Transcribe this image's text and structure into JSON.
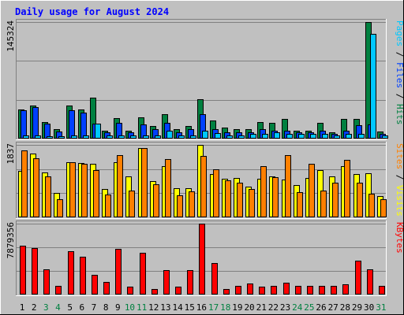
{
  "chart_data": {
    "type": "bar",
    "title": "Daily usage for August 2024",
    "categories": [
      "1",
      "2",
      "3",
      "4",
      "5",
      "6",
      "7",
      "8",
      "9",
      "10",
      "11",
      "12",
      "13",
      "14",
      "15",
      "16",
      "17",
      "18",
      "19",
      "20",
      "21",
      "22",
      "23",
      "24",
      "25",
      "26",
      "27",
      "28",
      "29",
      "30",
      "31"
    ],
    "weekend_days": [
      "3",
      "4",
      "10",
      "11",
      "17",
      "18",
      "24",
      "25",
      "31"
    ],
    "colors": {
      "hits": "#008040",
      "files": "#0040ff",
      "pages": "#00c8ff",
      "visits": "#ffff00",
      "sites": "#ff8000",
      "kbytes": "#ff0000",
      "weekday_label": "#000000",
      "weekend_label": "#008040"
    },
    "panels": [
      {
        "id": "hits-files-pages",
        "max_label": "145324",
        "ymax": 145324,
        "legend": [
          {
            "text": "Pages",
            "color": "#00c8ff"
          },
          {
            "text": "Files",
            "color": "#0040ff"
          },
          {
            "text": "Hits",
            "color": "#008040"
          }
        ],
        "series": [
          {
            "name": "Hits",
            "color": "#008040",
            "values": [
              36000,
              41000,
              21000,
              12000,
              41000,
              36000,
              51000,
              10000,
              26000,
              10000,
              27000,
              16000,
              30000,
              12000,
              16000,
              49000,
              23000,
              14000,
              12000,
              12000,
              21000,
              20000,
              25000,
              10000,
              10000,
              20000,
              8000,
              25000,
              25000,
              145324,
              9000
            ]
          },
          {
            "name": "Files",
            "color": "#0040ff",
            "values": [
              35000,
              39000,
              19000,
              9000,
              35000,
              32000,
              19000,
              8000,
              20000,
              8000,
              18000,
              12000,
              20000,
              8000,
              12000,
              30000,
              12000,
              8000,
              8000,
              8000,
              12000,
              10000,
              10000,
              8000,
              8000,
              10000,
              6000,
              10000,
              17000,
              18000,
              6000
            ]
          },
          {
            "name": "Pages",
            "color": "#00c8ff",
            "values": [
              4000,
              4000,
              3000,
              3000,
              4000,
              4000,
              19000,
              4000,
              4000,
              4000,
              4000,
              4000,
              10000,
              4000,
              4000,
              10000,
              7000,
              4000,
              4000,
              6000,
              6000,
              8000,
              6000,
              6000,
              6000,
              6000,
              4000,
              6000,
              6000,
              131000,
              4000
            ]
          }
        ]
      },
      {
        "id": "visits-sites",
        "max_label": "1837",
        "ymax": 1837,
        "legend": [
          {
            "text": "Sites",
            "color": "#ff8000"
          },
          {
            "text": "Visits",
            "color": "#ffff00"
          }
        ],
        "series": [
          {
            "name": "Visits",
            "color": "#ffff00",
            "values": [
              1170,
              1620,
              1140,
              620,
              1400,
              1380,
              1360,
              720,
              1400,
              1030,
              1760,
              920,
              1300,
              730,
              730,
              1837,
              1100,
              980,
              1000,
              780,
              970,
              1040,
              960,
              810,
              1000,
              1200,
              1040,
              1290,
              1100,
              1120,
              530
            ]
          },
          {
            "name": "Sites",
            "color": "#ff8000",
            "values": [
              1690,
              1490,
              1040,
              460,
              1390,
              1360,
              1190,
              580,
              1580,
              680,
              1750,
              830,
              1480,
              550,
              660,
              1560,
              1210,
              930,
              870,
              710,
              1300,
              1010,
              1580,
              640,
              1360,
              670,
              880,
              1460,
              870,
              590,
              460
            ]
          }
        ]
      },
      {
        "id": "kbytes",
        "max_label": "7879356",
        "ymax": 7879356,
        "legend": [
          {
            "text": "KBytes",
            "color": "#ff0000"
          }
        ],
        "series": [
          {
            "name": "KBytes",
            "color": "#ff0000",
            "values": [
              5400000,
              5200000,
              2800000,
              1000000,
              4800000,
              4200000,
              2200000,
              1400000,
              5100000,
              900000,
              4600000,
              600000,
              2700000,
              900000,
              2700000,
              7879356,
              3500000,
              600000,
              1000000,
              1200000,
              900000,
              1000000,
              1300000,
              1000000,
              1000000,
              1000000,
              1000000,
              1100000,
              3800000,
              2800000,
              1000000
            ]
          }
        ]
      }
    ]
  }
}
